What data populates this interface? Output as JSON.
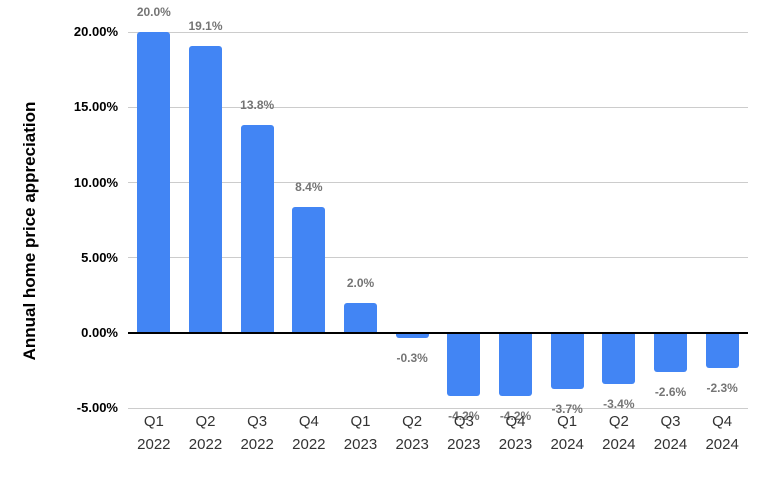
{
  "chart_data": {
    "type": "bar",
    "title": "",
    "xlabel": "",
    "ylabel": "Annual home price appreciation",
    "categories": [
      {
        "quarter": "Q1",
        "year": "2022"
      },
      {
        "quarter": "Q2",
        "year": "2022"
      },
      {
        "quarter": "Q3",
        "year": "2022"
      },
      {
        "quarter": "Q4",
        "year": "2022"
      },
      {
        "quarter": "Q1",
        "year": "2023"
      },
      {
        "quarter": "Q2",
        "year": "2023"
      },
      {
        "quarter": "Q3",
        "year": "2023"
      },
      {
        "quarter": "Q4",
        "year": "2023"
      },
      {
        "quarter": "Q1",
        "year": "2024"
      },
      {
        "quarter": "Q2",
        "year": "2024"
      },
      {
        "quarter": "Q3",
        "year": "2024"
      },
      {
        "quarter": "Q4",
        "year": "2024"
      }
    ],
    "values": [
      20.0,
      19.1,
      13.8,
      8.4,
      2.0,
      -0.3,
      -4.2,
      -4.2,
      -3.7,
      -3.4,
      -2.6,
      -2.3
    ],
    "data_labels": [
      "20.0%",
      "19.1%",
      "13.8%",
      "8.4%",
      "2.0%",
      "-0.3%",
      "-4.2%",
      "-4.2%",
      "-3.7%",
      "-3.4%",
      "-2.6%",
      "-2.3%"
    ],
    "y_ticks": [
      {
        "value": 20,
        "label": "20.00%"
      },
      {
        "value": 15,
        "label": "15.00%"
      },
      {
        "value": 10,
        "label": "10.00%"
      },
      {
        "value": 5,
        "label": "5.00%"
      },
      {
        "value": 0,
        "label": "0.00%"
      },
      {
        "value": -5,
        "label": "-5.00%"
      }
    ],
    "ylim": [
      -5,
      20
    ],
    "grid": true,
    "legend": "none",
    "colors": {
      "bar": "#4285F4",
      "data_label": "#757575",
      "y_tick_label": "#000000",
      "x_tick_label": "#333333",
      "gridline": "#cccccc",
      "zero_line": "#000000",
      "background": "#ffffff"
    }
  }
}
